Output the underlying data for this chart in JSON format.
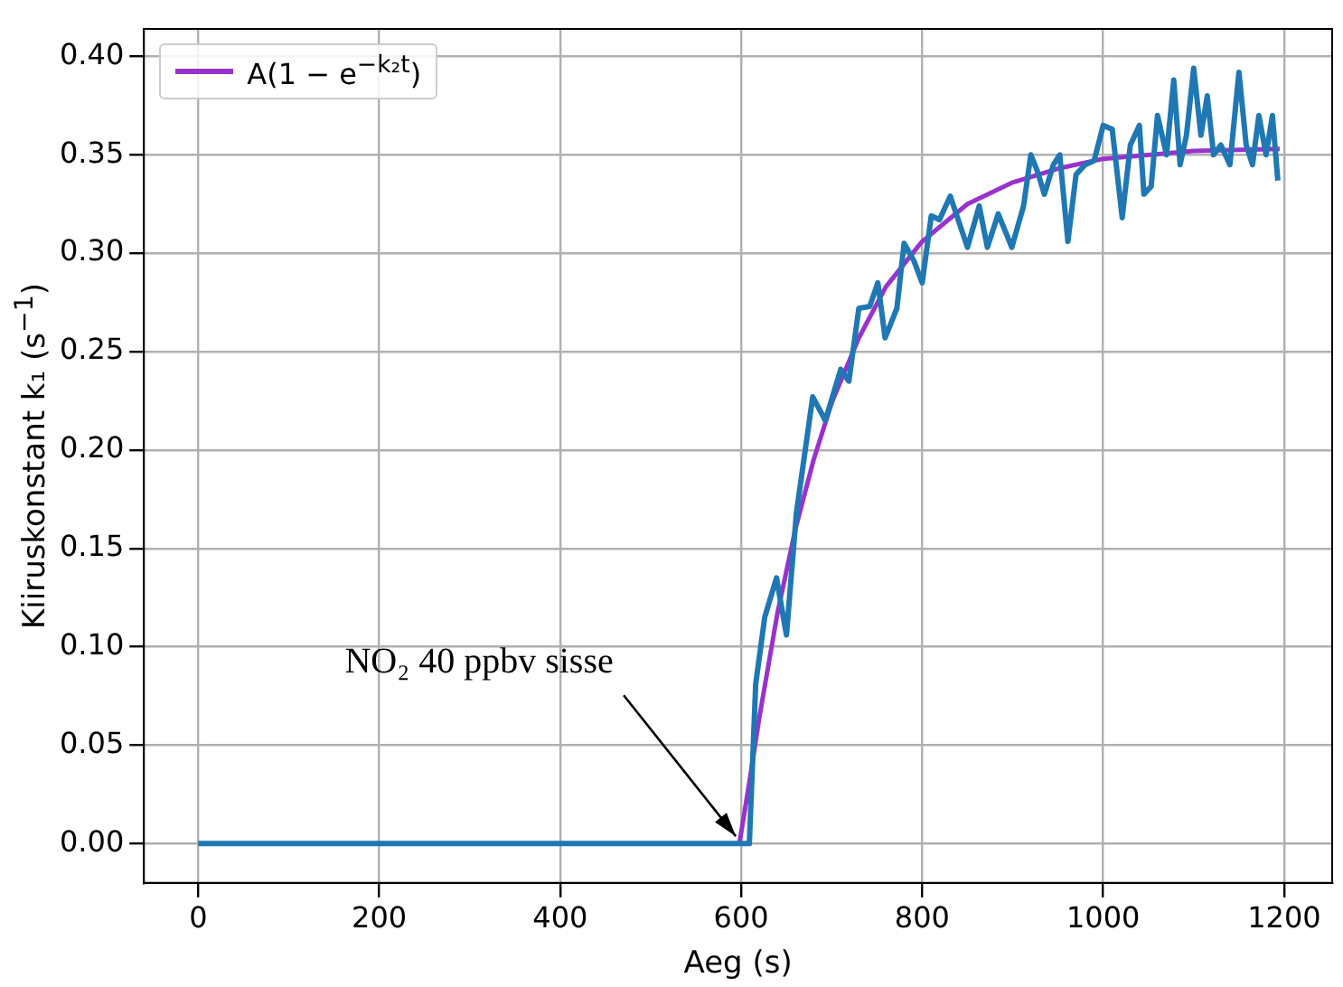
{
  "chart_data": {
    "type": "line",
    "xlabel": "Aeg (s)",
    "ylabel": "Kiiruskonstant k₁ (s$^{−1}$)",
    "xlim": [
      -60,
      1253
    ],
    "xticks": [
      0,
      200,
      400,
      600,
      800,
      1000,
      1200
    ],
    "ylim": [
      -0.02,
      0.414
    ],
    "yticks": [
      {
        "value": 0,
        "label": "0.00"
      },
      {
        "value": 0.05,
        "label": "0.05"
      },
      {
        "value": 0.1,
        "label": "0.10"
      },
      {
        "value": 0.15,
        "label": "0.15"
      },
      {
        "value": 0.2,
        "label": "0.20"
      },
      {
        "value": 0.25,
        "label": "0.25"
      },
      {
        "value": 0.3,
        "label": "0.30"
      },
      {
        "value": 0.35,
        "label": "0.35"
      },
      {
        "value": 0.4,
        "label": "0.40"
      }
    ],
    "grid": true,
    "legend": "top left",
    "marker": "none",
    "line_style": "solid",
    "series": [
      {
        "color": "#1f77b4",
        "x": [
          0,
          605,
          609,
          616,
          626,
          639,
          650,
          661,
          679,
          693,
          710,
          719,
          730,
          742,
          751,
          759,
          772,
          780,
          791,
          800,
          810,
          819,
          831,
          850,
          863,
          872,
          884,
          899,
          912,
          920,
          927,
          935,
          945,
          952,
          961,
          970,
          980,
          990,
          1000,
          1010,
          1021,
          1030,
          1040,
          1045,
          1053,
          1060,
          1070,
          1078,
          1085,
          1092,
          1100,
          1108,
          1115,
          1122,
          1130,
          1140,
          1150,
          1158,
          1165,
          1172,
          1180,
          1187,
          1193
        ],
        "values": [
          0,
          0,
          0,
          0.081,
          0.115,
          0.135,
          0.106,
          0.168,
          0.227,
          0.215,
          0.241,
          0.235,
          0.272,
          0.273,
          0.285,
          0.257,
          0.272,
          0.305,
          0.296,
          0.285,
          0.319,
          0.317,
          0.329,
          0.303,
          0.324,
          0.303,
          0.32,
          0.303,
          0.324,
          0.35,
          0.342,
          0.33,
          0.345,
          0.35,
          0.306,
          0.34,
          0.345,
          0.347,
          0.365,
          0.363,
          0.318,
          0.355,
          0.365,
          0.33,
          0.334,
          0.37,
          0.35,
          0.388,
          0.345,
          0.36,
          0.394,
          0.36,
          0.38,
          0.35,
          0.355,
          0.345,
          0.392,
          0.355,
          0.345,
          0.37,
          0.35,
          0.37,
          0.337
        ]
      },
      {
        "name": "A(1 − e$^{−k₂t}$)",
        "color": "#9932cc",
        "x": [
          598,
          610,
          620,
          640,
          660,
          680,
          700,
          730,
          760,
          800,
          850,
          900,
          950,
          1000,
          1100,
          1195
        ],
        "values": [
          0,
          0.034,
          0.064,
          0.117,
          0.16,
          0.195,
          0.224,
          0.257,
          0.283,
          0.306,
          0.325,
          0.336,
          0.343,
          0.348,
          0.352,
          0.353
        ]
      }
    ],
    "annotations": [
      {
        "text": "NO₂ 40 ppbv sisse",
        "x": 600,
        "y": 0
      }
    ]
  }
}
